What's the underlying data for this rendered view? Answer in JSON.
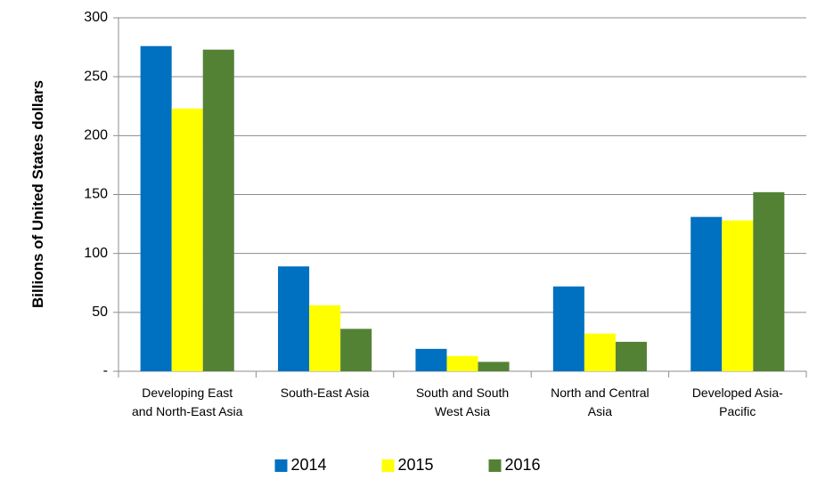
{
  "chart_data": {
    "type": "bar",
    "y_label": "Billions of United States dollars",
    "categories": [
      "Developing East and North-East Asia",
      "South-East Asia",
      "South and South West Asia",
      "North and Central Asia",
      "Developed Asia-Pacific"
    ],
    "series": [
      {
        "name": "2014",
        "color": "#0070c0",
        "values": [
          276,
          89,
          19,
          72,
          131
        ]
      },
      {
        "name": "2015",
        "color": "#ffff00",
        "values": [
          223,
          56,
          13,
          32,
          128
        ]
      },
      {
        "name": "2016",
        "color": "#548235",
        "values": [
          273,
          36,
          8,
          25,
          152
        ]
      }
    ],
    "ylim": [
      0,
      300
    ],
    "yticks": [
      {
        "value": 0,
        "label": "-"
      },
      50,
      100,
      150,
      200,
      250,
      300
    ],
    "grid": true,
    "legend": "bottom"
  }
}
